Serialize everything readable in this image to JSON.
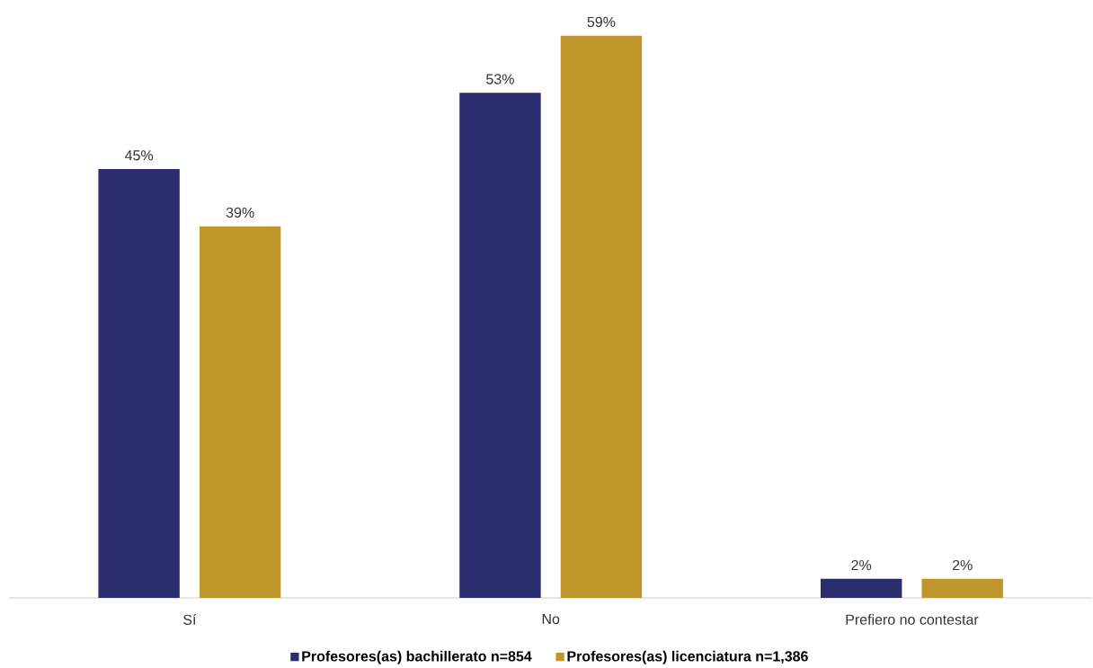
{
  "chart_data": {
    "type": "bar",
    "categories": [
      "Sí",
      "No",
      "Prefiero no contestar"
    ],
    "series": [
      {
        "name": "Profesores(as) bachillerato n=854",
        "color": "#2b2d6e",
        "values": [
          45,
          53,
          2
        ],
        "value_labels": [
          "45%",
          "53%",
          "2%"
        ]
      },
      {
        "name": "Profesores(as) licenciatura n=1,386",
        "color": "#bf962a",
        "values": [
          39,
          59,
          2
        ],
        "value_labels": [
          "39%",
          "59%",
          "2%"
        ]
      }
    ],
    "legend": "bottom"
  }
}
